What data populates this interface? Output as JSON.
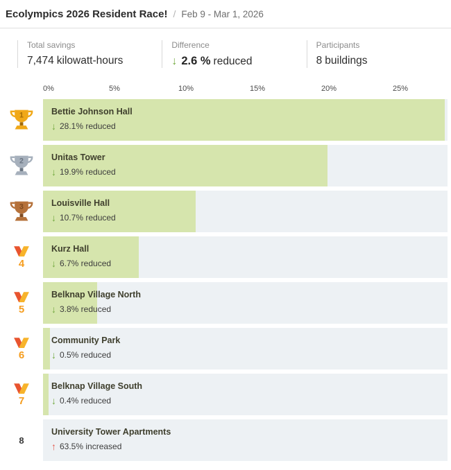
{
  "header": {
    "title": "Ecolympics 2026 Resident Race!",
    "separator": "/",
    "date_range": "Feb 9 - Mar 1, 2026"
  },
  "stats": [
    {
      "label": "Total savings",
      "value": "7,474",
      "unit": "kilowatt-hours"
    },
    {
      "label": "Difference",
      "value": "2.6 %",
      "unit": "reduced",
      "direction": "down"
    },
    {
      "label": "Participants",
      "value": "8",
      "unit": "buildings"
    }
  ],
  "chart_data": {
    "type": "bar",
    "orientation": "horizontal",
    "title": "Ecolympics 2026 Resident Race leaderboard",
    "axis_max": 28.3,
    "axis_ticks": [
      {
        "label": "0%",
        "value": 0
      },
      {
        "label": "5%",
        "value": 5
      },
      {
        "label": "10%",
        "value": 10
      },
      {
        "label": "15%",
        "value": 15
      },
      {
        "label": "20%",
        "value": 20
      },
      {
        "label": "25%",
        "value": 25
      }
    ],
    "rows": [
      {
        "rank": 1,
        "rank_icon": "trophy-gold",
        "name": "Bettie Johnson Hall",
        "value": 28.1,
        "label": "28.1% reduced",
        "direction": "down"
      },
      {
        "rank": 2,
        "rank_icon": "trophy-silver",
        "name": "Unitas Tower",
        "value": 19.9,
        "label": "19.9% reduced",
        "direction": "down"
      },
      {
        "rank": 3,
        "rank_icon": "trophy-bronze",
        "name": "Louisville Hall",
        "value": 10.7,
        "label": "10.7% reduced",
        "direction": "down"
      },
      {
        "rank": 4,
        "rank_icon": "medal",
        "name": "Kurz Hall",
        "value": 6.7,
        "label": "6.7% reduced",
        "direction": "down"
      },
      {
        "rank": 5,
        "rank_icon": "medal",
        "name": "Belknap Village North",
        "value": 3.8,
        "label": "3.8% reduced",
        "direction": "down"
      },
      {
        "rank": 6,
        "rank_icon": "medal",
        "name": "Community Park",
        "value": 0.5,
        "label": "0.5% reduced",
        "direction": "down"
      },
      {
        "rank": 7,
        "rank_icon": "medal",
        "name": "Belknap Village South",
        "value": 0.4,
        "label": "0.4% reduced",
        "direction": "down"
      },
      {
        "rank": 8,
        "rank_icon": "number",
        "name": "University Tower Apartments",
        "value": 63.5,
        "label": "63.5% increased",
        "direction": "up"
      }
    ]
  },
  "colors": {
    "bar_fill": "#d6e5ad",
    "bar_track": "#edf1f4",
    "decrease_green": "#71a83e",
    "increase_red": "#e2574c",
    "gold": "#f0a818",
    "gold_dark": "#a36b07",
    "silver": "#a6b0bc",
    "silver_dark": "#6b7683",
    "bronze": "#b5713a",
    "bronze_dark": "#7e4a20",
    "medal_red": "#e8542f",
    "medal_yellow": "#f7b32b",
    "medal_orange": "#f59d1f"
  },
  "glyphs": {
    "down_arrow": "↓",
    "up_arrow": "↑"
  }
}
